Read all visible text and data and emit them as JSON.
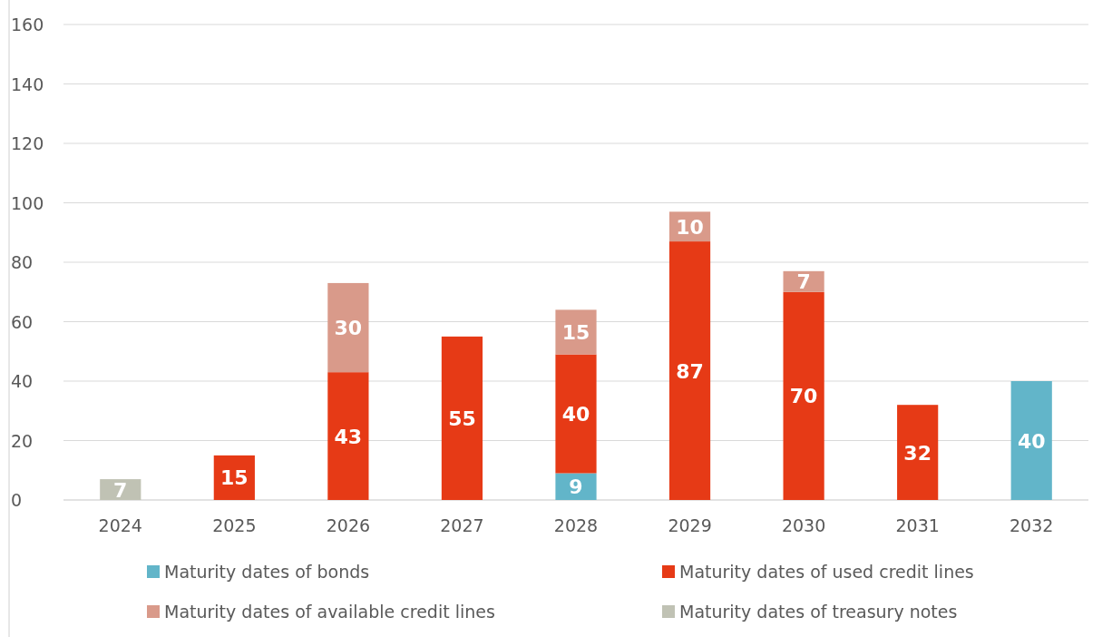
{
  "chart_data": {
    "type": "bar",
    "stacked": true,
    "categories": [
      "2024",
      "2025",
      "2026",
      "2027",
      "2028",
      "2029",
      "2030",
      "2031",
      "2032"
    ],
    "series": [
      {
        "name": "Maturity dates of bonds",
        "color": "#62b5c9",
        "values": [
          null,
          null,
          null,
          null,
          9,
          null,
          null,
          null,
          40
        ]
      },
      {
        "name": "Maturity dates of used credit lines",
        "color": "#e63a16",
        "values": [
          null,
          15,
          43,
          55,
          40,
          87,
          70,
          32,
          null
        ]
      },
      {
        "name": "Maturity dates of available credit lines",
        "color": "#d99a8a",
        "values": [
          null,
          null,
          30,
          null,
          15,
          10,
          7,
          null,
          null
        ]
      },
      {
        "name": "Maturity dates of treasury notes",
        "color": "#c0c2b4",
        "values": [
          7,
          null,
          null,
          null,
          null,
          null,
          null,
          null,
          null
        ]
      }
    ],
    "ylim": [
      0,
      160
    ],
    "yticks": [
      0,
      20,
      40,
      60,
      80,
      100,
      120,
      140,
      160
    ],
    "grid": "y",
    "legend": "bottom",
    "data_labels": true
  }
}
